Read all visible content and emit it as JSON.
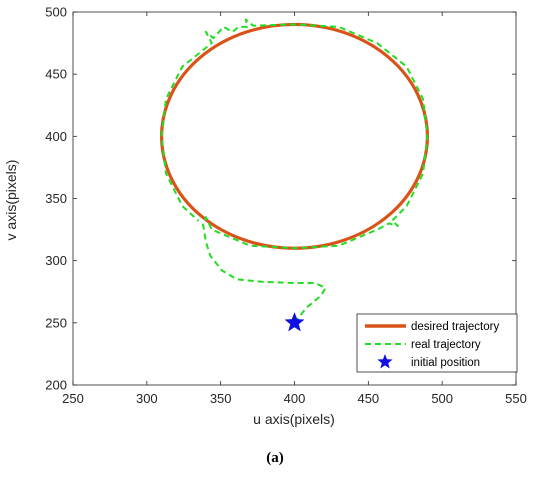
{
  "caption": "(a)",
  "chart_data": {
    "type": "line",
    "title": "",
    "xlabel": "u axis(pixels)",
    "ylabel": "v axis(pixels)",
    "xlim": [
      250,
      550
    ],
    "ylim": [
      200,
      500
    ],
    "xticks": [
      250,
      300,
      350,
      400,
      450,
      500,
      550
    ],
    "yticks": [
      200,
      250,
      300,
      350,
      400,
      450,
      500
    ],
    "grid": false,
    "legend_position": "bottom-right",
    "series": [
      {
        "name": "desired trajectory",
        "style": "solid",
        "color": "#d95319",
        "shape": "ellipse",
        "center": [
          400,
          400
        ],
        "radii": [
          90,
          90
        ],
        "points": [
          [
            490,
            400
          ],
          [
            487,
            430
          ],
          [
            476,
            456
          ],
          [
            456,
            475
          ],
          [
            430,
            488
          ],
          [
            400,
            490
          ],
          [
            370,
            488
          ],
          [
            344,
            475
          ],
          [
            324,
            456
          ],
          [
            313,
            430
          ],
          [
            310,
            400
          ],
          [
            313,
            370
          ],
          [
            324,
            344
          ],
          [
            344,
            325
          ],
          [
            370,
            312
          ],
          [
            400,
            310
          ],
          [
            430,
            312
          ],
          [
            456,
            325
          ],
          [
            476,
            344
          ],
          [
            487,
            370
          ],
          [
            490,
            400
          ]
        ]
      },
      {
        "name": "real trajectory",
        "style": "dashed",
        "color": "#22dd22",
        "points": [
          [
            400,
            250
          ],
          [
            408,
            262
          ],
          [
            418,
            272
          ],
          [
            421,
            278
          ],
          [
            414,
            282
          ],
          [
            400,
            282
          ],
          [
            378,
            283
          ],
          [
            361,
            285
          ],
          [
            351,
            292
          ],
          [
            343,
            304
          ],
          [
            340,
            315
          ],
          [
            338,
            330
          ],
          [
            340,
            335
          ],
          [
            344,
            325
          ],
          [
            370,
            312
          ],
          [
            400,
            310
          ],
          [
            430,
            312
          ],
          [
            456,
            325
          ],
          [
            464,
            330
          ],
          [
            470,
            328
          ],
          [
            466,
            332
          ],
          [
            476,
            344
          ],
          [
            487,
            370
          ],
          [
            490,
            400
          ],
          [
            487,
            430
          ],
          [
            476,
            456
          ],
          [
            456,
            475
          ],
          [
            430,
            488
          ],
          [
            400,
            490
          ],
          [
            372,
            489
          ],
          [
            367,
            494
          ],
          [
            368,
            488
          ],
          [
            362,
            488
          ],
          [
            358,
            484
          ],
          [
            352,
            488
          ],
          [
            345,
            479
          ],
          [
            340,
            484
          ],
          [
            344,
            475
          ],
          [
            324,
            456
          ],
          [
            313,
            430
          ],
          [
            310,
            400
          ],
          [
            313,
            370
          ],
          [
            324,
            344
          ],
          [
            335,
            332
          ]
        ]
      },
      {
        "name": "initial position",
        "style": "marker",
        "marker": "star",
        "color": "#1010e0",
        "points": [
          [
            400,
            250
          ]
        ]
      }
    ]
  }
}
